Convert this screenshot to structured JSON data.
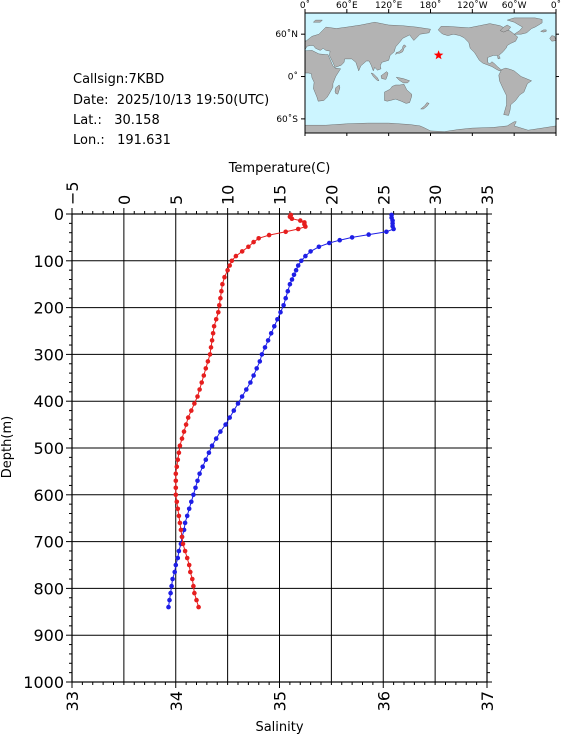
{
  "station": {
    "callsign_label": "Callsign:",
    "callsign": "7KBD",
    "date_label": "Date:",
    "date": "2025/10/13 19:50(UTC)",
    "lat_label": "Lat.:",
    "lat": "30.158",
    "lon_label": "Lon.:",
    "lon": "191.631"
  },
  "map": {
    "lon_labels": [
      "0˚",
      "60˚E",
      "120˚E",
      "180˚",
      "120˚W",
      "60˚W",
      "0˚"
    ],
    "lat_labels": [
      "60˚N",
      "0˚",
      "60˚S"
    ],
    "lon_ticks": [
      0,
      60,
      120,
      180,
      240,
      300,
      360
    ],
    "lat_ticks": [
      60,
      0,
      -60
    ],
    "lon_range": [
      0,
      360
    ],
    "lat_range": [
      -80,
      90
    ],
    "ocean_color": "#ccf5ff",
    "land_color": "#b3b3b3",
    "marker": {
      "lon": 191.631,
      "lat": 30.158,
      "color": "#ff0000",
      "icon": "star-icon"
    }
  },
  "chart_data": {
    "type": "line",
    "top_axis_label": "Temperature(C)",
    "bottom_axis_label": "Salinity",
    "ylabel": "Depth(m)",
    "temperature_range": [
      -5,
      35
    ],
    "salinity_range": [
      33,
      37
    ],
    "depth_range": [
      0,
      1000
    ],
    "temperature_ticks": [
      "−5",
      "0",
      "5",
      "10",
      "15",
      "20",
      "25",
      "30",
      "35"
    ],
    "salinity_ticks": [
      "33",
      "34",
      "35",
      "36",
      "37"
    ],
    "depth_ticks": [
      "0",
      "100",
      "200",
      "300",
      "400",
      "500",
      "600",
      "700",
      "800",
      "900",
      "1000"
    ],
    "series": [
      {
        "quantity": "temperature",
        "color": "#1e1ee6",
        "points": [
          {
            "depth": 2,
            "value": 25.8
          },
          {
            "depth": 8,
            "value": 25.8
          },
          {
            "depth": 14,
            "value": 25.9
          },
          {
            "depth": 20,
            "value": 25.9
          },
          {
            "depth": 26,
            "value": 25.9
          },
          {
            "depth": 32,
            "value": 26.0
          },
          {
            "depth": 38,
            "value": 25.3
          },
          {
            "depth": 44,
            "value": 23.6
          },
          {
            "depth": 50,
            "value": 22.0
          },
          {
            "depth": 56,
            "value": 20.8
          },
          {
            "depth": 62,
            "value": 19.8
          },
          {
            "depth": 70,
            "value": 18.8
          },
          {
            "depth": 80,
            "value": 18.0
          },
          {
            "depth": 90,
            "value": 17.5
          },
          {
            "depth": 100,
            "value": 17.1
          },
          {
            "depth": 110,
            "value": 16.8
          },
          {
            "depth": 120,
            "value": 16.6
          },
          {
            "depth": 130,
            "value": 16.4
          },
          {
            "depth": 140,
            "value": 16.2
          },
          {
            "depth": 150,
            "value": 16.0
          },
          {
            "depth": 165,
            "value": 15.8
          },
          {
            "depth": 180,
            "value": 15.6
          },
          {
            "depth": 195,
            "value": 15.4
          },
          {
            "depth": 210,
            "value": 15.1
          },
          {
            "depth": 225,
            "value": 14.8
          },
          {
            "depth": 240,
            "value": 14.5
          },
          {
            "depth": 255,
            "value": 14.2
          },
          {
            "depth": 270,
            "value": 13.9
          },
          {
            "depth": 285,
            "value": 13.6
          },
          {
            "depth": 300,
            "value": 13.3
          },
          {
            "depth": 315,
            "value": 13.1
          },
          {
            "depth": 330,
            "value": 12.8
          },
          {
            "depth": 345,
            "value": 12.5
          },
          {
            "depth": 360,
            "value": 12.2
          },
          {
            "depth": 375,
            "value": 11.8
          },
          {
            "depth": 390,
            "value": 11.4
          },
          {
            "depth": 405,
            "value": 11.0
          },
          {
            "depth": 420,
            "value": 10.6
          },
          {
            "depth": 435,
            "value": 10.2
          },
          {
            "depth": 450,
            "value": 9.8
          },
          {
            "depth": 465,
            "value": 9.3
          },
          {
            "depth": 480,
            "value": 8.9
          },
          {
            "depth": 495,
            "value": 8.5
          },
          {
            "depth": 510,
            "value": 8.2
          },
          {
            "depth": 525,
            "value": 7.9
          },
          {
            "depth": 540,
            "value": 7.6
          },
          {
            "depth": 555,
            "value": 7.3
          },
          {
            "depth": 570,
            "value": 7.1
          },
          {
            "depth": 585,
            "value": 6.9
          },
          {
            "depth": 600,
            "value": 6.7
          },
          {
            "depth": 615,
            "value": 6.5
          },
          {
            "depth": 630,
            "value": 6.3
          },
          {
            "depth": 645,
            "value": 6.1
          },
          {
            "depth": 660,
            "value": 5.9
          },
          {
            "depth": 675,
            "value": 5.8
          },
          {
            "depth": 690,
            "value": 5.6
          },
          {
            "depth": 705,
            "value": 5.5
          },
          {
            "depth": 720,
            "value": 5.3
          },
          {
            "depth": 735,
            "value": 5.2
          },
          {
            "depth": 750,
            "value": 5.0
          },
          {
            "depth": 765,
            "value": 4.9
          },
          {
            "depth": 780,
            "value": 4.7
          },
          {
            "depth": 795,
            "value": 4.6
          },
          {
            "depth": 810,
            "value": 4.5
          },
          {
            "depth": 825,
            "value": 4.4
          },
          {
            "depth": 840,
            "value": 4.3
          }
        ]
      },
      {
        "quantity": "salinity",
        "color": "#e61e1e",
        "points": [
          {
            "depth": 2,
            "value": 35.11
          },
          {
            "depth": 6,
            "value": 35.1
          },
          {
            "depth": 10,
            "value": 35.12
          },
          {
            "depth": 14,
            "value": 35.2
          },
          {
            "depth": 18,
            "value": 35.24
          },
          {
            "depth": 22,
            "value": 35.24
          },
          {
            "depth": 27,
            "value": 35.25
          },
          {
            "depth": 32,
            "value": 35.18
          },
          {
            "depth": 38,
            "value": 35.06
          },
          {
            "depth": 45,
            "value": 34.9
          },
          {
            "depth": 52,
            "value": 34.8
          },
          {
            "depth": 60,
            "value": 34.75
          },
          {
            "depth": 70,
            "value": 34.7
          },
          {
            "depth": 80,
            "value": 34.64
          },
          {
            "depth": 90,
            "value": 34.58
          },
          {
            "depth": 100,
            "value": 34.54
          },
          {
            "depth": 110,
            "value": 34.52
          },
          {
            "depth": 120,
            "value": 34.5
          },
          {
            "depth": 135,
            "value": 34.47
          },
          {
            "depth": 150,
            "value": 34.45
          },
          {
            "depth": 165,
            "value": 34.44
          },
          {
            "depth": 180,
            "value": 34.43
          },
          {
            "depth": 195,
            "value": 34.42
          },
          {
            "depth": 210,
            "value": 34.41
          },
          {
            "depth": 225,
            "value": 34.39
          },
          {
            "depth": 240,
            "value": 34.37
          },
          {
            "depth": 255,
            "value": 34.36
          },
          {
            "depth": 270,
            "value": 34.35
          },
          {
            "depth": 285,
            "value": 34.34
          },
          {
            "depth": 300,
            "value": 34.33
          },
          {
            "depth": 315,
            "value": 34.31
          },
          {
            "depth": 330,
            "value": 34.29
          },
          {
            "depth": 345,
            "value": 34.27
          },
          {
            "depth": 360,
            "value": 34.25
          },
          {
            "depth": 375,
            "value": 34.23
          },
          {
            "depth": 390,
            "value": 34.21
          },
          {
            "depth": 405,
            "value": 34.18
          },
          {
            "depth": 420,
            "value": 34.15
          },
          {
            "depth": 435,
            "value": 34.12
          },
          {
            "depth": 450,
            "value": 34.1
          },
          {
            "depth": 465,
            "value": 34.08
          },
          {
            "depth": 480,
            "value": 34.06
          },
          {
            "depth": 495,
            "value": 34.04
          },
          {
            "depth": 510,
            "value": 34.03
          },
          {
            "depth": 525,
            "value": 34.02
          },
          {
            "depth": 540,
            "value": 34.01
          },
          {
            "depth": 555,
            "value": 34.0
          },
          {
            "depth": 570,
            "value": 34.0
          },
          {
            "depth": 585,
            "value": 34.0
          },
          {
            "depth": 600,
            "value": 34.0
          },
          {
            "depth": 615,
            "value": 34.01
          },
          {
            "depth": 630,
            "value": 34.02
          },
          {
            "depth": 645,
            "value": 34.03
          },
          {
            "depth": 660,
            "value": 34.04
          },
          {
            "depth": 675,
            "value": 34.05
          },
          {
            "depth": 690,
            "value": 34.06
          },
          {
            "depth": 705,
            "value": 34.07
          },
          {
            "depth": 720,
            "value": 34.09
          },
          {
            "depth": 735,
            "value": 34.11
          },
          {
            "depth": 750,
            "value": 34.13
          },
          {
            "depth": 765,
            "value": 34.14
          },
          {
            "depth": 780,
            "value": 34.16
          },
          {
            "depth": 795,
            "value": 34.17
          },
          {
            "depth": 810,
            "value": 34.18
          },
          {
            "depth": 825,
            "value": 34.2
          },
          {
            "depth": 840,
            "value": 34.22
          }
        ]
      }
    ]
  }
}
